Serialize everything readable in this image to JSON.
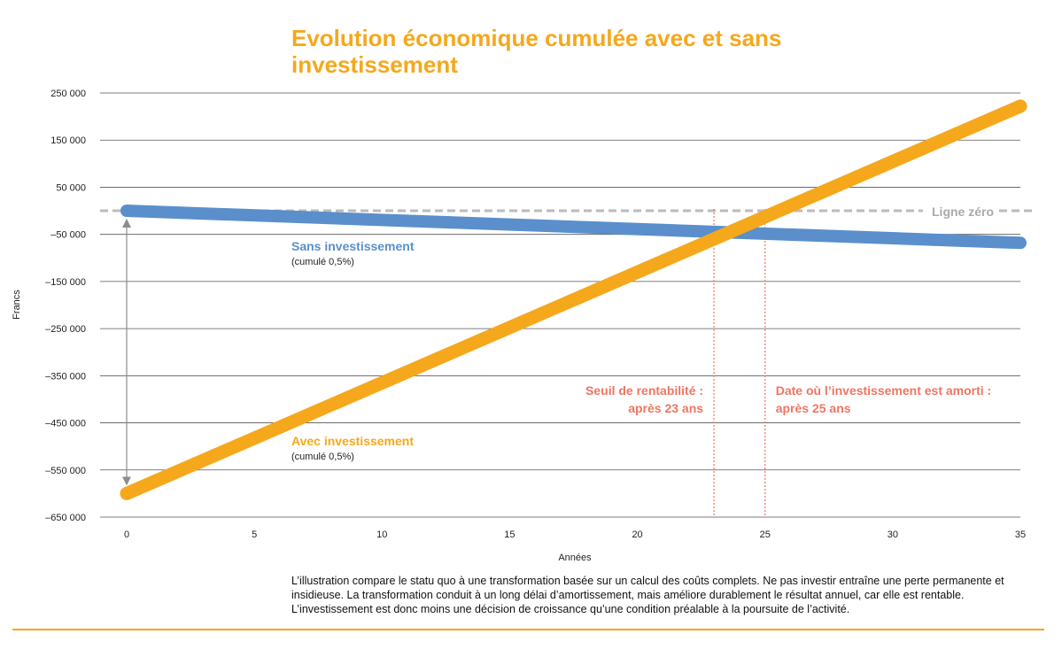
{
  "title": "Evolution économique cumulée avec et sans investissement",
  "caption": "L’illustration compare le statu quo à une transformation basée sur un calcul des coûts complets. Ne pas investir entraîne une perte permanente et insidieuse. La transformation conduit à un long délai d’amortissement, mais améliore durablement le résultat annuel, car elle est rentable. L’investissement est donc moins une décision de croissance qu’une condition préalable à la poursuite de l’activité.",
  "colors": {
    "accent": "#f5a81c",
    "blue": "#5a8fcb",
    "annotation": "#ee7562",
    "zero_line": "#bbbbbb"
  },
  "chart_data": {
    "type": "line",
    "xlabel": "Années",
    "ylabel": "Francs",
    "xlim": [
      0,
      35
    ],
    "ylim": [
      -650000,
      250000
    ],
    "x_ticks": [
      0,
      5,
      10,
      15,
      20,
      25,
      30,
      35
    ],
    "y_ticks": [
      250000,
      150000,
      50000,
      -50000,
      -150000,
      -250000,
      -350000,
      -450000,
      -550000,
      -650000
    ],
    "y_tick_labels": [
      "250 000",
      "150 000",
      "50 000",
      "–50 000",
      "–150 000",
      "–250 000",
      "–350 000",
      "–450 000",
      "–550 000",
      "–650 000"
    ],
    "grid": true,
    "series": [
      {
        "name": "Sans investissement",
        "note": "(cumulé 0,5%)",
        "color": "#5a8fcb",
        "x": [
          0,
          35
        ],
        "values": [
          0,
          -68000
        ]
      },
      {
        "name": "Avec investissement",
        "note": "(cumulé 0,5%)",
        "color": "#f5a81c",
        "x": [
          0,
          35
        ],
        "values": [
          -600000,
          222000
        ]
      }
    ],
    "zero_line": {
      "label": "Ligne zéro",
      "value": 0
    },
    "annotations": [
      {
        "x": 23,
        "lines": [
          "Seuil de rentabilité :",
          "après 23 ans"
        ],
        "align": "right"
      },
      {
        "x": 25,
        "lines": [
          "Date où l’investissement est amorti :",
          "après 25 ans"
        ],
        "align": "left"
      }
    ],
    "initial_gap_arrow": {
      "x": 0,
      "from": 0,
      "to": -600000
    }
  }
}
